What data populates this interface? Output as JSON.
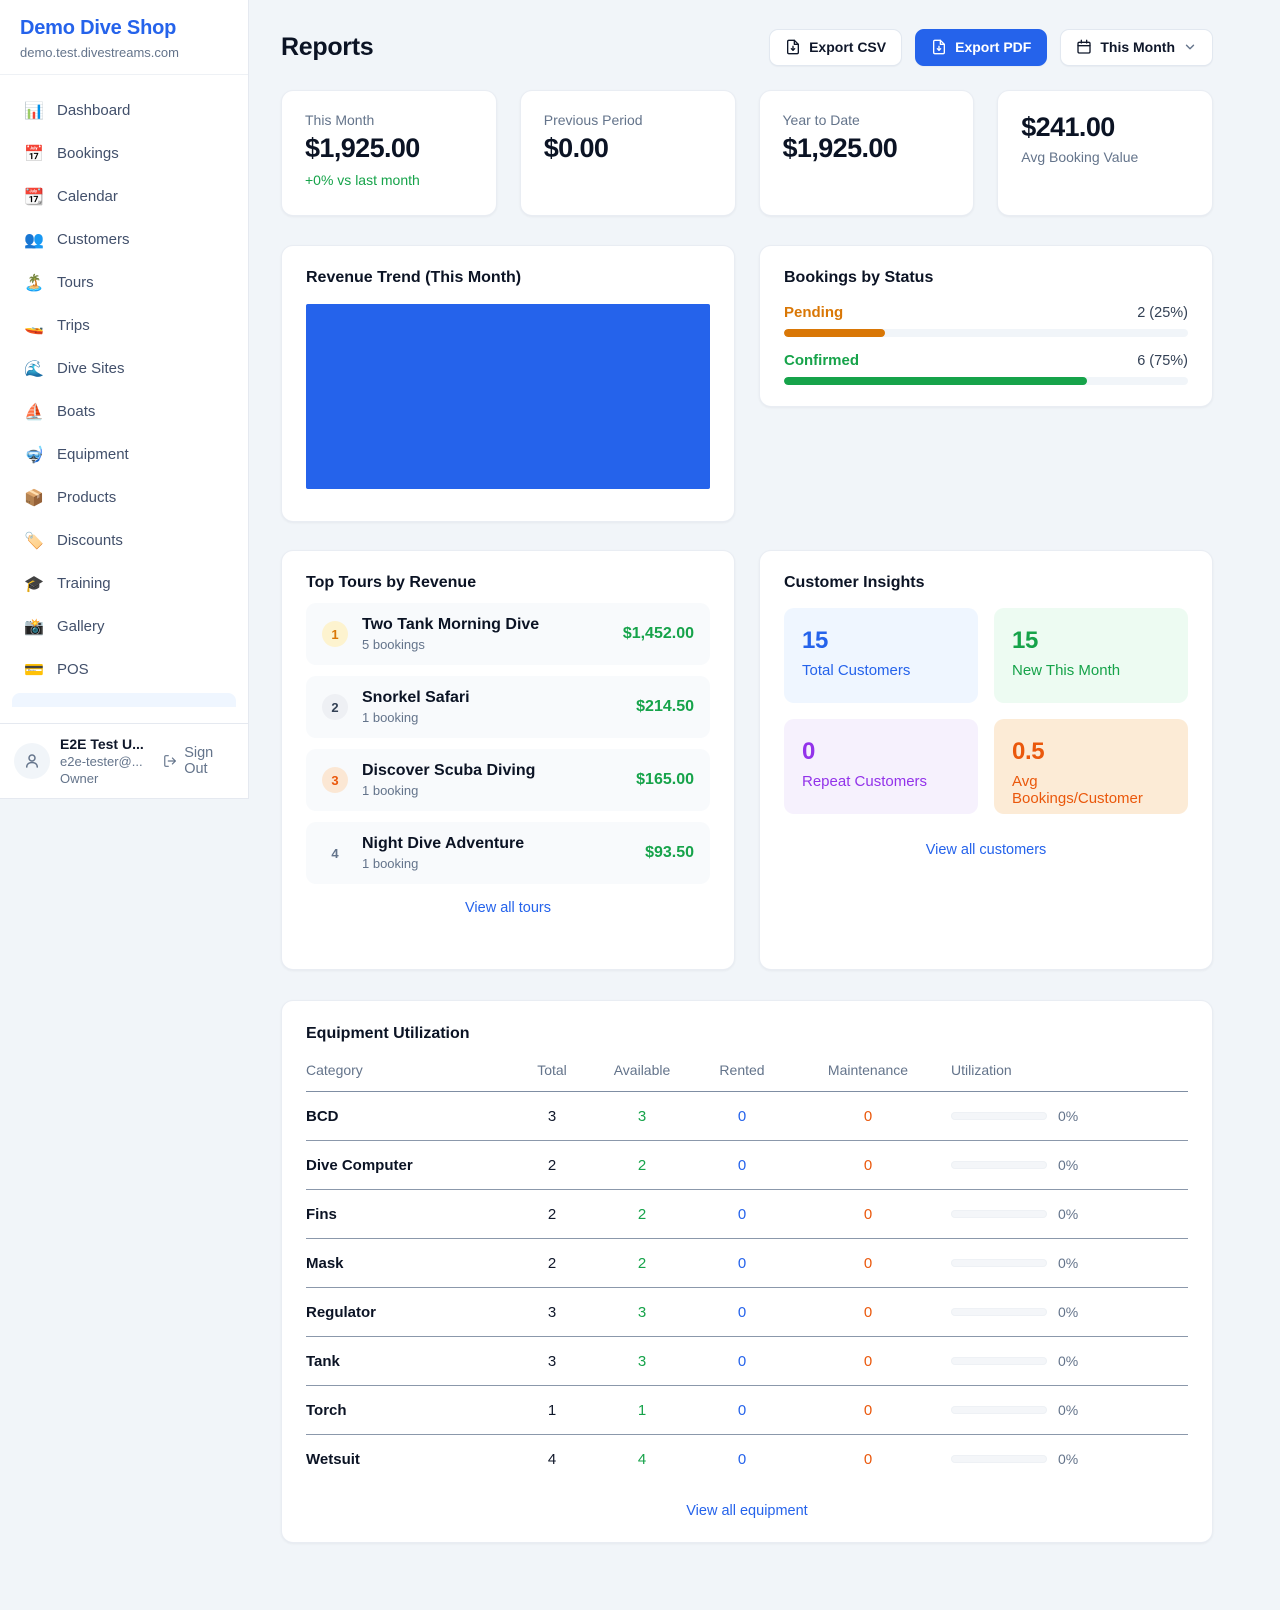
{
  "sidebar": {
    "shop_name": "Demo Dive Shop",
    "shop_domain": "demo.test.divestreams.com",
    "items": [
      {
        "icon": "bar-chart-icon",
        "emoji": "📊",
        "label": "Dashboard"
      },
      {
        "icon": "calendar-icon",
        "emoji": "📅",
        "label": "Bookings"
      },
      {
        "icon": "tear-off-calendar-icon",
        "emoji": "📆",
        "label": "Calendar"
      },
      {
        "icon": "people-icon",
        "emoji": "👥",
        "label": "Customers"
      },
      {
        "icon": "island-icon",
        "emoji": "🏝️",
        "label": "Tours"
      },
      {
        "icon": "speedboat-icon",
        "emoji": "🚤",
        "label": "Trips"
      },
      {
        "icon": "wave-icon",
        "emoji": "🌊",
        "label": "Dive Sites"
      },
      {
        "icon": "sailboat-icon",
        "emoji": "⛵",
        "label": "Boats"
      },
      {
        "icon": "diving-mask-icon",
        "emoji": "🤿",
        "label": "Equipment"
      },
      {
        "icon": "package-icon",
        "emoji": "📦",
        "label": "Products"
      },
      {
        "icon": "tag-icon",
        "emoji": "🏷️",
        "label": "Discounts"
      },
      {
        "icon": "graduation-cap-icon",
        "emoji": "🎓",
        "label": "Training"
      },
      {
        "icon": "camera-icon",
        "emoji": "📸",
        "label": "Gallery"
      },
      {
        "icon": "credit-card-icon",
        "emoji": "💳",
        "label": "POS"
      }
    ],
    "user": {
      "name": "E2E Test U...",
      "email": "e2e-tester@...",
      "role": "Owner",
      "sign_out": "Sign Out"
    }
  },
  "header": {
    "title": "Reports",
    "export_csv": "Export CSV",
    "export_pdf": "Export PDF",
    "period": "This Month"
  },
  "stats": [
    {
      "label": "This Month",
      "value": "$1,925.00",
      "delta": "+0% vs last month"
    },
    {
      "label": "Previous Period",
      "value": "$0.00"
    },
    {
      "label": "Year to Date",
      "value": "$1,925.00"
    },
    {
      "label": "Avg Booking Value",
      "value": "$241.00"
    }
  ],
  "revenue_trend": {
    "title": "Revenue Trend (This Month)",
    "bar_color": "#2563eb"
  },
  "bookings_by_status": {
    "title": "Bookings by Status",
    "rows": [
      {
        "label": "Pending",
        "count_text": "2 (25%)",
        "count": 2,
        "percent": 25,
        "color": "#d97706"
      },
      {
        "label": "Confirmed",
        "count_text": "6 (75%)",
        "count": 6,
        "percent": 75,
        "color": "#16a34a"
      }
    ]
  },
  "chart_data": [
    {
      "type": "bar",
      "title": "Revenue Trend (This Month)",
      "categories": [
        "This Month"
      ],
      "values": [
        1925
      ],
      "bar_color": "#2563eb"
    },
    {
      "type": "bar",
      "title": "Bookings by Status",
      "categories": [
        "Pending",
        "Confirmed"
      ],
      "values": [
        2,
        6
      ],
      "percents": [
        25,
        75
      ],
      "colors": [
        "#d97706",
        "#16a34a"
      ]
    }
  ],
  "top_tours": {
    "title": "Top Tours by Revenue",
    "items": [
      {
        "rank": "1",
        "name": "Two Tank Morning Dive",
        "bookings": "5 bookings",
        "revenue": "$1,452.00"
      },
      {
        "rank": "2",
        "name": "Snorkel Safari",
        "bookings": "1 booking",
        "revenue": "$214.50"
      },
      {
        "rank": "3",
        "name": "Discover Scuba Diving",
        "bookings": "1 booking",
        "revenue": "$165.00"
      },
      {
        "rank": "4",
        "name": "Night Dive Adventure",
        "bookings": "1 booking",
        "revenue": "$93.50"
      }
    ],
    "view_all": "View all tours"
  },
  "customer_insights": {
    "title": "Customer Insights",
    "tiles": [
      {
        "value": "15",
        "label": "Total Customers"
      },
      {
        "value": "15",
        "label": "New This Month"
      },
      {
        "value": "0",
        "label": "Repeat Customers"
      },
      {
        "value": "0.5",
        "label": "Avg Bookings/Customer"
      }
    ],
    "view_all": "View all customers"
  },
  "equipment": {
    "title": "Equipment Utilization",
    "columns": [
      "Category",
      "Total",
      "Available",
      "Rented",
      "Maintenance",
      "Utilization"
    ],
    "rows": [
      {
        "category": "BCD",
        "total": "3",
        "available": "3",
        "rented": "0",
        "maintenance": "0",
        "utilization": "0%",
        "utilization_pct": 0
      },
      {
        "category": "Dive Computer",
        "total": "2",
        "available": "2",
        "rented": "0",
        "maintenance": "0",
        "utilization": "0%",
        "utilization_pct": 0
      },
      {
        "category": "Fins",
        "total": "2",
        "available": "2",
        "rented": "0",
        "maintenance": "0",
        "utilization": "0%",
        "utilization_pct": 0
      },
      {
        "category": "Mask",
        "total": "2",
        "available": "2",
        "rented": "0",
        "maintenance": "0",
        "utilization": "0%",
        "utilization_pct": 0
      },
      {
        "category": "Regulator",
        "total": "3",
        "available": "3",
        "rented": "0",
        "maintenance": "0",
        "utilization": "0%",
        "utilization_pct": 0
      },
      {
        "category": "Tank",
        "total": "3",
        "available": "3",
        "rented": "0",
        "maintenance": "0",
        "utilization": "0%",
        "utilization_pct": 0
      },
      {
        "category": "Torch",
        "total": "1",
        "available": "1",
        "rented": "0",
        "maintenance": "0",
        "utilization": "0%",
        "utilization_pct": 0
      },
      {
        "category": "Wetsuit",
        "total": "4",
        "available": "4",
        "rented": "0",
        "maintenance": "0",
        "utilization": "0%",
        "utilization_pct": 0
      }
    ],
    "view_all": "View all equipment"
  }
}
